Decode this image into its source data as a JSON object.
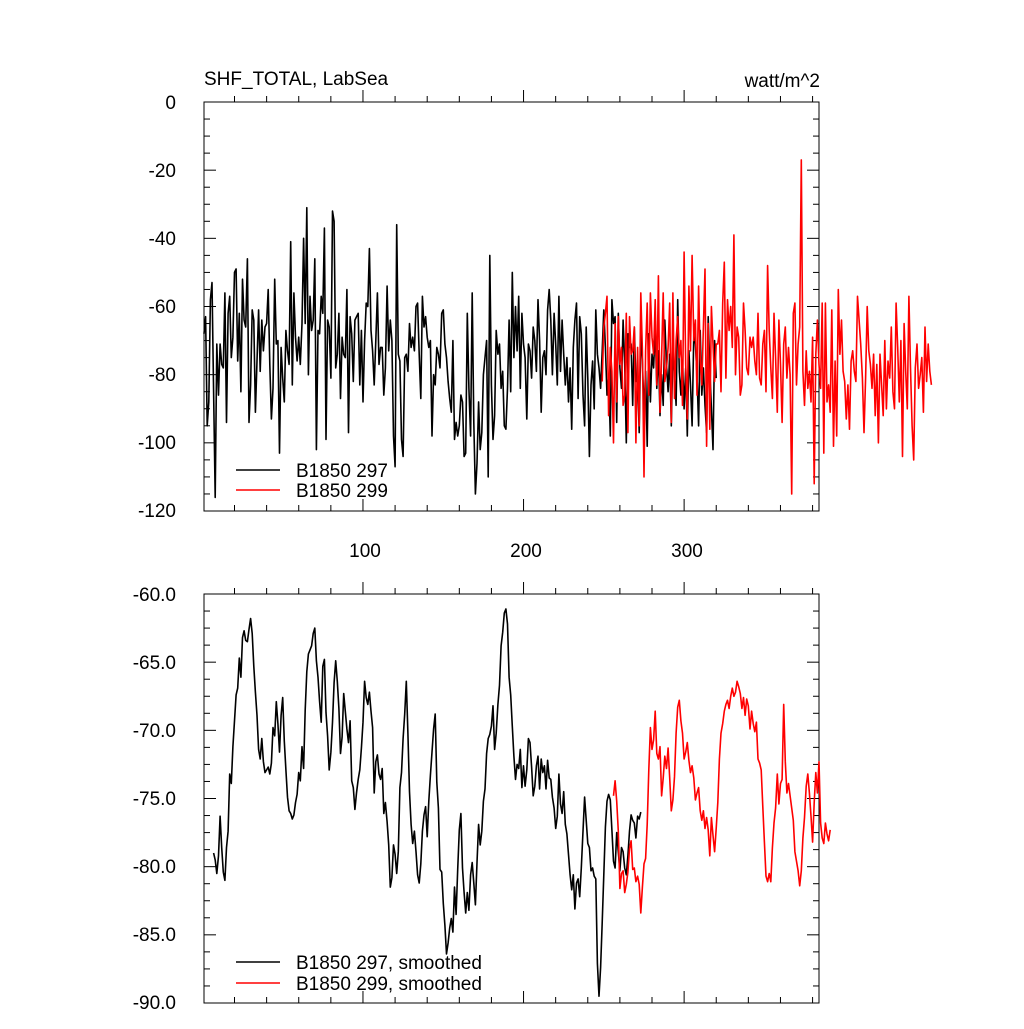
{
  "chart_data": [
    {
      "type": "line",
      "title": "SHF_TOTAL, LabSea",
      "units": "watt/m^2",
      "xlabel": "",
      "ylabel": "",
      "xlim": [
        1,
        384
      ],
      "ylim": [
        -120,
        0
      ],
      "xticks": [
        100,
        200,
        300
      ],
      "yticks": [
        0,
        -20,
        -40,
        -60,
        -80,
        -100,
        -120
      ],
      "ytick_labels": [
        "0",
        "-20",
        "-40",
        "-60",
        "-80",
        "-100",
        "-120"
      ],
      "grid": false,
      "legend_position": "bottom-left",
      "series": [
        {
          "name": "B1850 297",
          "color": "#000000",
          "x_start": 1,
          "values": [
            -68,
            -63,
            -95,
            -88,
            -58,
            -53,
            -85,
            -116,
            -71,
            -86,
            -71,
            -77,
            -78,
            -56,
            -94,
            -62,
            -57,
            -75,
            -69,
            -50,
            -49,
            -76,
            -62,
            -85,
            -52,
            -64,
            -66,
            -46,
            -94,
            -83,
            -61,
            -64,
            -91,
            -76,
            -61,
            -79,
            -64,
            -73,
            -66,
            -65,
            -55,
            -77,
            -93,
            -84,
            -52,
            -71,
            -70,
            -103,
            -72,
            -81,
            -88,
            -67,
            -73,
            -77,
            -41,
            -83,
            -56,
            -69,
            -76,
            -69,
            -77,
            -65,
            -40,
            -65,
            -31,
            -80,
            -57,
            -67,
            -64,
            -46,
            -102,
            -67,
            -68,
            -57,
            -62,
            -37,
            -99,
            -64,
            -66,
            -81,
            -32,
            -35,
            -78,
            -74,
            -62,
            -87,
            -69,
            -74,
            -75,
            -55,
            -97,
            -63,
            -68,
            -82,
            -64,
            -63,
            -62,
            -83,
            -67,
            -88,
            -70,
            -59,
            -60,
            -43,
            -67,
            -73,
            -83,
            -70,
            -56,
            -77,
            -72,
            -72,
            -86,
            -78,
            -54,
            -73,
            -64,
            -70,
            -98,
            -107,
            -36,
            -74,
            -76,
            -99,
            -104,
            -75,
            -74,
            -79,
            -65,
            -72,
            -69,
            -73,
            -60,
            -59,
            -74,
            -87,
            -57,
            -66,
            -63,
            -69,
            -72,
            -70,
            -98,
            -80,
            -83,
            -72,
            -74,
            -78,
            -62,
            -61,
            -71,
            -75,
            -82,
            -87,
            -91,
            -70,
            -99,
            -94,
            -98,
            -95,
            -86,
            -88,
            -104,
            -103,
            -62,
            -84,
            -98,
            -56,
            -94,
            -115,
            -106,
            -88,
            -102,
            -97,
            -80,
            -75,
            -70,
            -110,
            -45,
            -83,
            -99,
            -92,
            -67,
            -74,
            -71,
            -84,
            -79,
            -95,
            -96,
            -84,
            -64,
            -85,
            -50,
            -75,
            -60,
            -73,
            -57,
            -84,
            -62,
            -71,
            -75,
            -93,
            -71,
            -73,
            -81,
            -66,
            -70,
            -79,
            -58,
            -70,
            -91,
            -75,
            -73,
            -80,
            -61,
            -55,
            -64,
            -80,
            -62,
            -71,
            -83,
            -57,
            -79,
            -64,
            -74,
            -83,
            -75,
            -88,
            -78,
            -96,
            -72,
            -64,
            -59,
            -87,
            -63,
            -68,
            -86,
            -95,
            -66,
            -81,
            -104,
            -83,
            -76,
            -90,
            -61,
            -74,
            -78,
            -84,
            -73,
            -61,
            -72,
            -86,
            -80,
            -98,
            -58,
            -65,
            -63,
            -94,
            -62,
            -78,
            -84,
            -64,
            -77,
            -100,
            -68,
            -72,
            -71,
            -89,
            -66,
            -82,
            -80,
            -97,
            -68,
            -76,
            -91,
            -79,
            -101,
            -68,
            -88,
            -74,
            -78,
            -66,
            -84,
            -73,
            -92,
            -80,
            -89,
            -64,
            -77,
            -85,
            -74,
            -95,
            -73,
            -80,
            -89,
            -58,
            -79,
            -86,
            -76,
            -90,
            -78,
            -98,
            -73,
            -83,
            -95,
            -68,
            -71,
            -80,
            -95,
            -67,
            -86,
            -78,
            -89,
            -97,
            -63,
            -78,
            -90,
            -102,
            -70,
            -81
          ]
        },
        {
          "name": "B1850 299",
          "color": "#ff0000",
          "x_start": 249,
          "values": [
            -82,
            -66,
            -62,
            -57,
            -92,
            -72,
            -79,
            -100,
            -65,
            -88,
            -63,
            -77,
            -72,
            -89,
            -86,
            -62,
            -97,
            -63,
            -74,
            -73,
            -66,
            -100,
            -72,
            -95,
            -56,
            -73,
            -110,
            -73,
            -59,
            -86,
            -56,
            -69,
            -74,
            -58,
            -83,
            -51,
            -91,
            -75,
            -56,
            -82,
            -78,
            -72,
            -59,
            -94,
            -56,
            -87,
            -70,
            -63,
            -75,
            -70,
            -89,
            -44,
            -77,
            -93,
            -54,
            -73,
            -45,
            -70,
            -64,
            -86,
            -54,
            -75,
            -83,
            -66,
            -49,
            -101,
            -65,
            -96,
            -60,
            -71,
            -82,
            -71,
            -71,
            -67,
            -85,
            -59,
            -47,
            -81,
            -58,
            -67,
            -60,
            -72,
            -39,
            -80,
            -66,
            -69,
            -86,
            -83,
            -59,
            -67,
            -78,
            -80,
            -69,
            -72,
            -69,
            -76,
            -80,
            -62,
            -81,
            -83,
            -71,
            -67,
            -85,
            -48,
            -67,
            -78,
            -87,
            -62,
            -75,
            -91,
            -64,
            -77,
            -94,
            -71,
            -66,
            -81,
            -72,
            -80,
            -115,
            -62,
            -59,
            -83,
            -71,
            -66,
            -17,
            -79,
            -89,
            -73,
            -84,
            -79,
            -88,
            -69,
            -112,
            -74,
            -64,
            -77,
            -84,
            -59,
            -103,
            -59,
            -88,
            -83,
            -91,
            -61,
            -101,
            -76,
            -98,
            -55,
            -74,
            -64,
            -79,
            -82,
            -93,
            -83,
            -96,
            -76,
            -73,
            -79,
            -82,
            -57,
            -64,
            -71,
            -81,
            -97,
            -81,
            -60,
            -73,
            -77,
            -84,
            -74,
            -92,
            -77,
            -100,
            -74,
            -83,
            -92,
            -70,
            -90,
            -76,
            -81,
            -66,
            -85,
            -90,
            -59,
            -72,
            -88,
            -70,
            -104,
            -65,
            -79,
            -90,
            -57,
            -78,
            -95,
            -105,
            -78,
            -71,
            -84,
            -80,
            -75,
            -91,
            -66,
            -82,
            -71,
            -79,
            -83
          ]
        }
      ]
    },
    {
      "type": "line",
      "title": "",
      "xlabel": "",
      "ylabel": "",
      "xlim": [
        1,
        384
      ],
      "ylim": [
        -90,
        -60
      ],
      "xticks": [
        100,
        200,
        300
      ],
      "yticks": [
        -60,
        -65,
        -70,
        -75,
        -80,
        -85,
        -90
      ],
      "ytick_labels": [
        "-60.0",
        "-65.0",
        "-70.0",
        "-75.0",
        "-80.0",
        "-85.0",
        "-90.0"
      ],
      "grid": false,
      "legend_position": "bottom-left",
      "series": [
        {
          "name": "B1850 297, smoothed",
          "color": "#000000",
          "x_start": 7,
          "values": [
            -79,
            -79.5,
            -80.5,
            -79.2,
            -76.3,
            -78.6,
            -80.4,
            -81,
            -78.6,
            -77.4,
            -73.2,
            -73.9,
            -71.2,
            -69.3,
            -67.4,
            -66.9,
            -64.7,
            -66.1,
            -63.2,
            -62.7,
            -63.4,
            -63.5,
            -62.6,
            -61.8,
            -62.9,
            -65.3,
            -67.2,
            -68.9,
            -71.4,
            -72.1,
            -70.6,
            -72.3,
            -73.1,
            -72.9,
            -72.7,
            -73.2,
            -72.4,
            -69.8,
            -70.4,
            -67.9,
            -69.5,
            -71.6,
            -68.9,
            -67.6,
            -70.8,
            -72.9,
            -74.9,
            -75.9,
            -76.1,
            -76.5,
            -76.2,
            -75.3,
            -74.7,
            -73.1,
            -73.7,
            -71.2,
            -72.8,
            -68.5,
            -65.7,
            -64.4,
            -64.1,
            -63.8,
            -62.9,
            -62.5,
            -64.9,
            -66.1,
            -67.9,
            -69.4,
            -65.3,
            -64.8,
            -68.7,
            -70.4,
            -72.9,
            -71.6,
            -69.4,
            -66.5,
            -64.9,
            -66.4,
            -68.4,
            -71.7,
            -70.5,
            -67.3,
            -68.6,
            -69.9,
            -70.9,
            -69.3,
            -73.7,
            -74.2,
            -75.8,
            -74.6,
            -73.6,
            -72.9,
            -71.3,
            -69.4,
            -66.4,
            -67.6,
            -68.1,
            -67.2,
            -68.6,
            -69.8,
            -74.6,
            -72.3,
            -71.8,
            -73.2,
            -73.6,
            -72.8,
            -76.1,
            -75.3,
            -76.7,
            -78.4,
            -81.5,
            -80.8,
            -78.4,
            -79.1,
            -80.5,
            -78.9,
            -74.2,
            -73.1,
            -70.6,
            -68.8,
            -66.4,
            -70.2,
            -74.5,
            -76.9,
            -78.3,
            -77.4,
            -78.9,
            -80.6,
            -81.2,
            -79.8,
            -77.4,
            -76.2,
            -75.6,
            -77.8,
            -75.2,
            -73.3,
            -71.6,
            -69.9,
            -68.8,
            -73.8,
            -75.7,
            -80.2,
            -80.4,
            -82.7,
            -84.3,
            -86.4,
            -85.6,
            -84.5,
            -83.8,
            -84.8,
            -81.5,
            -83.5,
            -80.2,
            -77.3,
            -76.1,
            -80.1,
            -81.9,
            -83.4,
            -81.9,
            -83.2,
            -80.6,
            -79.7,
            -81.2,
            -82.8,
            -79.7,
            -76.9,
            -78.4,
            -77.4,
            -75.2,
            -74.3,
            -71.7,
            -70.6,
            -70.3,
            -69.7,
            -68.2,
            -71.4,
            -70.2,
            -68.1,
            -66.7,
            -63.8,
            -62.8,
            -61.4,
            -61.1,
            -62.2,
            -66.1,
            -67.4,
            -69.7,
            -71.9,
            -73.6,
            -72.5,
            -72.8,
            -71.4,
            -74.2,
            -72.6,
            -74.1,
            -72.9,
            -70.6,
            -70.9,
            -72.7,
            -74.8,
            -74.1,
            -72.6,
            -71.9,
            -74.3,
            -72.1,
            -73.1,
            -72.6,
            -74.3,
            -72.2,
            -73.5,
            -73.6,
            -74.9,
            -75.7,
            -77.2,
            -76.3,
            -73.2,
            -75.4,
            -76.1,
            -74.5,
            -76.9,
            -77.6,
            -79.1,
            -80.6,
            -81.7,
            -80.6,
            -83.1,
            -81.2,
            -80.9,
            -82.2,
            -80.1,
            -77.4,
            -74.9,
            -76.6,
            -78.3,
            -78.6,
            -80.3,
            -80.1,
            -80.7,
            -80.9,
            -87.1,
            -89.5,
            -87.4,
            -84.1,
            -80.6,
            -77.1,
            -75.2,
            -74.7,
            -75.1,
            -77.3,
            -79.6,
            -80.1,
            -77.5,
            -78.9,
            -80.3,
            -78.6,
            -78.9,
            -80.1,
            -80.6,
            -79.2,
            -77.4,
            -76.2,
            -76.6,
            -76.8,
            -77.9,
            -76.3,
            -76.5,
            -76
          ]
        },
        {
          "name": "B1850 299, smoothed",
          "color": "#ff0000",
          "x_start": 256,
          "values": [
            -74.8,
            -73.7,
            -75.2,
            -77.4,
            -81.6,
            -80.5,
            -80.3,
            -81.9,
            -81.3,
            -80.4,
            -78.7,
            -78.1,
            -80.2,
            -80.1,
            -81.1,
            -80.7,
            -81.3,
            -83.4,
            -81.5,
            -79.8,
            -79.4,
            -76.9,
            -72.9,
            -69.8,
            -71.4,
            -70.7,
            -68.6,
            -71.7,
            -72.1,
            -71.2,
            -74.8,
            -73.5,
            -71.9,
            -72.8,
            -71.3,
            -73.5,
            -75.9,
            -75.1,
            -73.4,
            -70.2,
            -68.3,
            -67.8,
            -69.3,
            -70.2,
            -72.1,
            -71.6,
            -70.9,
            -72.2,
            -73.1,
            -72.6,
            -73.5,
            -75.1,
            -74.6,
            -74.2,
            -75.9,
            -76.6,
            -75.9,
            -77.2,
            -76.4,
            -77.3,
            -79.2,
            -76.4,
            -77.7,
            -78.9,
            -77.2,
            -75.3,
            -72.1,
            -70.2,
            -69.5,
            -68.6,
            -68.1,
            -67.8,
            -68.4,
            -67.5,
            -66.9,
            -67.5,
            -67.2,
            -66.4,
            -66.8,
            -67.3,
            -68.4,
            -67.6,
            -68.9,
            -67.7,
            -68.2,
            -69.9,
            -68.6,
            -69.5,
            -70.1,
            -69.4,
            -72.1,
            -72.4,
            -72.9,
            -75.6,
            -78.2,
            -80.7,
            -81.1,
            -80.5,
            -81.1,
            -78.6,
            -76.8,
            -75.7,
            -73.2,
            -75.4,
            -73.9,
            -73.6,
            -68.1,
            -72.3,
            -74.6,
            -73.9,
            -74.8,
            -75.7,
            -76.6,
            -78.9,
            -79.6,
            -80.3,
            -81.4,
            -80.3,
            -77.9,
            -76.4,
            -74.1,
            -73.2,
            -74.6,
            -76.3,
            -78.2,
            -75.3,
            -73.1,
            -74.6,
            -72.3,
            -76.8,
            -77.9,
            -78.3,
            -76.8,
            -77.6,
            -78.1,
            -77.3
          ]
        }
      ]
    }
  ]
}
